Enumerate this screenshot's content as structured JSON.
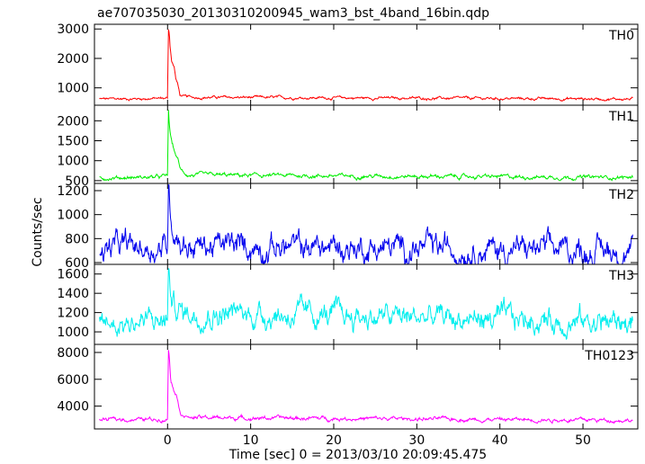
{
  "chart_data": {
    "type": "line",
    "title": "ae707035030_20130310200945_wam3_bst_4band_16bin.qdp",
    "xlabel": "Time [sec] 0 = 2013/03/10 20:09:45.475",
    "ylabel": "Counts/sec",
    "xlim": [
      -8.8,
      56.6
    ],
    "x_ticks": [
      0,
      10,
      20,
      30,
      40,
      50
    ],
    "grid": false,
    "legend": "none",
    "panels": [
      {
        "name": "TH0",
        "color": "#ff0000",
        "ylim": [
          410,
          3160
        ],
        "y_ticks": [
          1000,
          2000,
          3000
        ],
        "baseline": 600,
        "noise": 28,
        "x": [
          -8.0,
          -1.0,
          0.0,
          0.1,
          0.2,
          0.3,
          0.5,
          0.8,
          1.0,
          1.2,
          1.5,
          2.0,
          3.0,
          56.0
        ],
        "y": [
          620,
          640,
          650,
          3000,
          2900,
          2450,
          1900,
          1700,
          1300,
          1150,
          750,
          700,
          680,
          620
        ]
      },
      {
        "name": "TH1",
        "color": "#00ee00",
        "ylim": [
          430,
          2390
        ],
        "y_ticks": [
          500,
          1000,
          1500,
          2000
        ],
        "baseline": 560,
        "noise": 30,
        "x": [
          -8.0,
          -1.0,
          0.0,
          0.1,
          0.2,
          0.4,
          0.8,
          1.2,
          1.6,
          2.5,
          56.0
        ],
        "y": [
          570,
          590,
          620,
          2300,
          1900,
          1550,
          1250,
          1050,
          750,
          640,
          580
        ]
      },
      {
        "name": "TH2",
        "color": "#0000ee",
        "ylim": [
          585,
          1260
        ],
        "y_ticks": [
          600,
          800,
          1000,
          1200
        ],
        "baseline": 720,
        "noise": 65,
        "x": [
          -8.0,
          -1.0,
          0.0,
          0.1,
          0.3,
          0.6,
          1.0,
          1.5,
          2.5,
          56.0
        ],
        "y": [
          730,
          720,
          740,
          1250,
          1080,
          920,
          860,
          800,
          740,
          700
        ]
      },
      {
        "name": "TH3",
        "color": "#00eeee",
        "ylim": [
          870,
          1700
        ],
        "y_ticks": [
          1000,
          1200,
          1400,
          1600
        ],
        "baseline": 1120,
        "noise": 75,
        "x": [
          -8.0,
          -1.0,
          0.0,
          0.1,
          0.3,
          0.6,
          1.0,
          2.0,
          56.0
        ],
        "y": [
          1100,
          1110,
          1130,
          1650,
          1450,
          1300,
          1250,
          1200,
          1100
        ]
      },
      {
        "name": "TH0123",
        "color": "#ff00ff",
        "ylim": [
          2300,
          8600
        ],
        "y_ticks": [
          4000,
          6000,
          8000
        ],
        "baseline": 2980,
        "noise": 90,
        "x": [
          -8.0,
          -1.0,
          0.0,
          0.1,
          0.2,
          0.4,
          0.8,
          1.0,
          1.3,
          1.6,
          2.5,
          56.0
        ],
        "y": [
          3000,
          3020,
          3050,
          8300,
          7900,
          6000,
          5200,
          5000,
          4200,
          3500,
          3150,
          2950
        ]
      }
    ]
  }
}
